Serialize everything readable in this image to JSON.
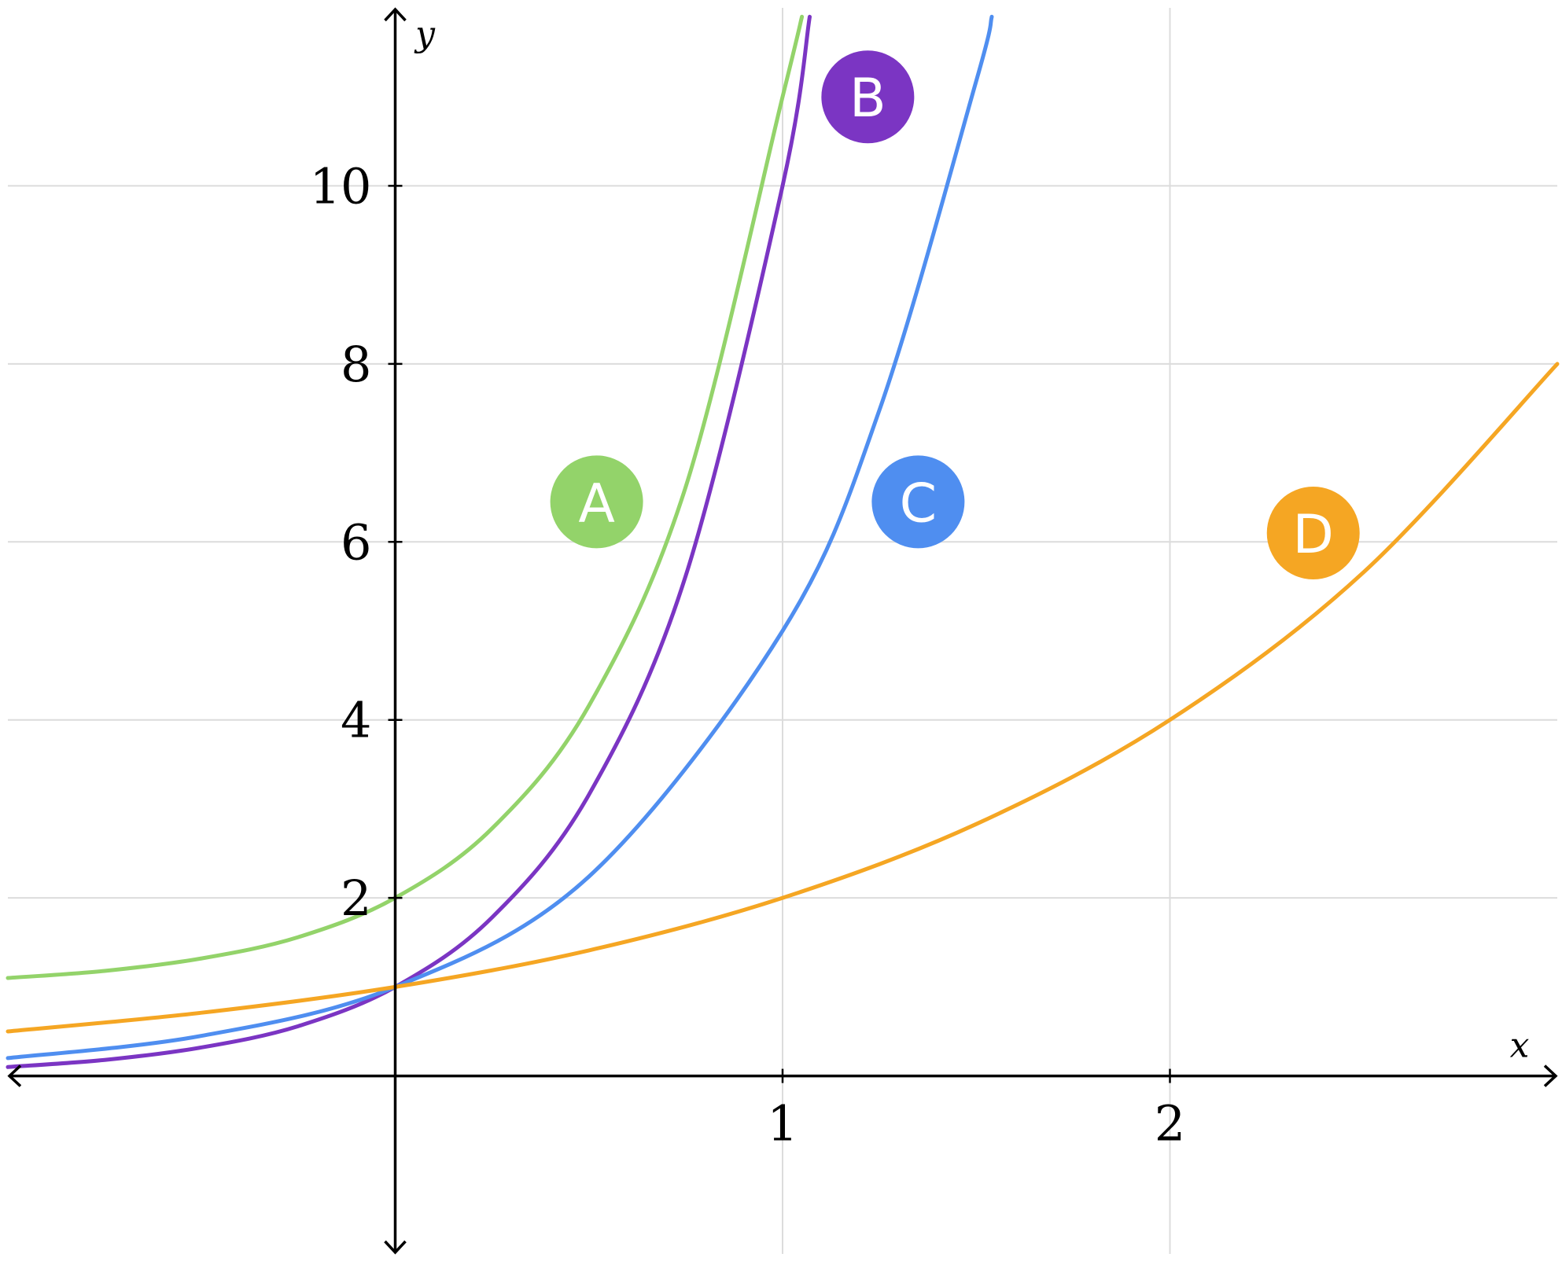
{
  "chart_data": {
    "type": "line",
    "xlabel": "x",
    "ylabel": "y",
    "xlim": [
      -1,
      3
    ],
    "ylim": [
      -2,
      12
    ],
    "grid": true,
    "x_ticks": [
      1,
      2
    ],
    "x_tick_labels": [
      "1",
      "2"
    ],
    "y_ticks": [
      2,
      4,
      6,
      8,
      10
    ],
    "y_tick_labels": [
      "2",
      "4",
      "6",
      "8",
      "10"
    ],
    "series": [
      {
        "name": "A",
        "color": "#93d36a",
        "x": [
          -1,
          -0.75,
          -0.5,
          -0.25,
          0,
          0.25,
          0.5,
          0.75,
          1.0,
          1.05
        ],
        "y": [
          1.1,
          1.18,
          1.32,
          1.56,
          2.0,
          2.78,
          4.16,
          6.62,
          11.0,
          11.9
        ]
      },
      {
        "name": "B",
        "color": "#7b35c3",
        "x": [
          -1,
          -0.75,
          -0.5,
          -0.25,
          0,
          0.25,
          0.5,
          0.75,
          1.0,
          1.07
        ],
        "y": [
          0.1,
          0.18,
          0.32,
          0.56,
          1.0,
          1.78,
          3.16,
          5.62,
          10.0,
          11.9
        ]
      },
      {
        "name": "C",
        "color": "#4f8ef0",
        "x": [
          -1,
          -0.5,
          0,
          0.5,
          1.0,
          1.25,
          1.5,
          1.54
        ],
        "y": [
          0.2,
          0.45,
          1.0,
          2.24,
          5.0,
          7.48,
          11.18,
          11.9
        ]
      },
      {
        "name": "D",
        "color": "#f5a623",
        "x": [
          -1,
          -0.5,
          0,
          0.5,
          1.0,
          1.5,
          2.0,
          2.5,
          3.0
        ],
        "y": [
          0.5,
          0.71,
          1.0,
          1.41,
          2.0,
          2.83,
          4.0,
          5.66,
          8.0
        ]
      }
    ],
    "annotations": [
      {
        "text": "A",
        "x": 0.52,
        "y": 6.45,
        "color": "#93d36a"
      },
      {
        "text": "B",
        "x": 1.22,
        "y": 11.0,
        "color": "#7b35c3"
      },
      {
        "text": "C",
        "x": 1.35,
        "y": 6.45,
        "color": "#4f8ef0"
      },
      {
        "text": "D",
        "x": 2.37,
        "y": 6.1,
        "color": "#f5a623"
      }
    ]
  }
}
